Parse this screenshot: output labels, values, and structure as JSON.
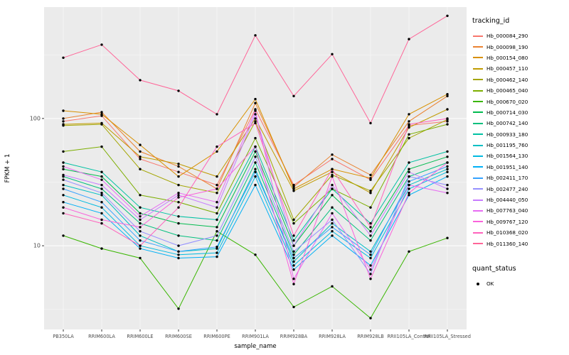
{
  "legend": {
    "tracking_title": "tracking_id",
    "quant_title": "quant_status",
    "quant_entries": [
      {
        "label": "OK"
      }
    ]
  },
  "chart_data": {
    "type": "line",
    "title": "",
    "xlabel": "sample_name",
    "ylabel": "FPKM + 1",
    "y_scale": "log10",
    "ylim": [
      2.2,
      750
    ],
    "y_ticks": [
      10,
      100
    ],
    "y_minor_ticks": [
      3.162,
      31.62,
      316.2
    ],
    "panel_bg": "#EBEBEB",
    "grid_color": "#FFFFFF",
    "point_color": "#000000",
    "tick_text_color": "#4D4D4D",
    "categories": [
      "PB350LA",
      "RRIM600LA",
      "RRIM600LE",
      "RRIM600SE",
      "RRIM600PE",
      "RRIM901LA",
      "RRIM928BA",
      "RRIM928LA",
      "RRIM928LB",
      "RRII105LA_Control",
      "RRII105LA_Stressed"
    ],
    "series": [
      {
        "name": "Hb_000084_290",
        "color": "#F8766D",
        "values": [
          95,
          105,
          48,
          38,
          30,
          118,
          30,
          48,
          33,
          88,
          95
        ]
      },
      {
        "name": "Hb_000098_190",
        "color": "#EA8331",
        "values": [
          100,
          112,
          55,
          42,
          28,
          132,
          29,
          52,
          36,
          95,
          150
        ]
      },
      {
        "name": "Hb_000154_080",
        "color": "#D89000",
        "values": [
          115,
          108,
          62,
          35,
          55,
          142,
          28,
          40,
          34,
          108,
          155
        ]
      },
      {
        "name": "Hb_000457_110",
        "color": "#C09B00",
        "values": [
          90,
          92,
          50,
          44,
          35,
          100,
          27,
          38,
          26,
          85,
          118
        ]
      },
      {
        "name": "Hb_000462_140",
        "color": "#A3A500",
        "values": [
          88,
          90,
          40,
          30,
          26,
          95,
          16,
          36,
          27,
          70,
          98
        ]
      },
      {
        "name": "Hb_000465_040",
        "color": "#7CAE00",
        "values": [
          55,
          60,
          25,
          22,
          18,
          70,
          15,
          28,
          20,
          75,
          90
        ]
      },
      {
        "name": "Hb_000670_020",
        "color": "#39B600",
        "values": [
          12,
          9.5,
          8,
          3.2,
          13,
          8.5,
          3.3,
          4.8,
          2.7,
          9,
          11.5
        ]
      },
      {
        "name": "Hb_000714_030",
        "color": "#00BB4E",
        "values": [
          40,
          35,
          18,
          15,
          14,
          55,
          10,
          25,
          13,
          40,
          50
        ]
      },
      {
        "name": "Hb_000742_140",
        "color": "#00BF7D",
        "values": [
          35,
          28,
          15,
          12,
          11,
          45,
          8.5,
          20,
          11,
          35,
          45
        ]
      },
      {
        "name": "Hb_000933_180",
        "color": "#00C1A3",
        "values": [
          45,
          38,
          20,
          17,
          16,
          60,
          11,
          28,
          15,
          45,
          55
        ]
      },
      {
        "name": "Hb_001195_760",
        "color": "#00BFC4",
        "values": [
          30,
          25,
          12,
          9,
          9.5,
          40,
          7.5,
          15,
          9,
          30,
          40
        ]
      },
      {
        "name": "Hb_001564_130",
        "color": "#00BAE0",
        "values": [
          25,
          20,
          10,
          8.5,
          8.8,
          35,
          7,
          13,
          8,
          28,
          38
        ]
      },
      {
        "name": "Hb_001951_140",
        "color": "#00B0F6",
        "values": [
          22,
          18,
          9.5,
          8,
          8.2,
          30,
          6.5,
          12,
          7,
          25,
          35
        ]
      },
      {
        "name": "Hb_002411_170",
        "color": "#35A2FF",
        "values": [
          28,
          22,
          11,
          9,
          9.8,
          38,
          8,
          14,
          8.5,
          32,
          42
        ]
      },
      {
        "name": "Hb_002477_240",
        "color": "#9590FF",
        "values": [
          33,
          26,
          13,
          10,
          12,
          50,
          9,
          16,
          6,
          35,
          30
        ]
      },
      {
        "name": "Hb_004440_050",
        "color": "#C77CFF",
        "values": [
          36,
          30,
          16,
          25,
          20,
          108,
          10,
          30,
          12,
          38,
          28
        ]
      },
      {
        "name": "Hb_007763_040",
        "color": "#E76BF3",
        "values": [
          42,
          33,
          17,
          26,
          22,
          115,
          5.5,
          18,
          6.5,
          30,
          26
        ]
      },
      {
        "name": "Hb_009767_120",
        "color": "#FA62DB",
        "values": [
          20,
          16,
          14,
          24,
          28,
          60,
          5,
          35,
          5.5,
          26,
          45
        ]
      },
      {
        "name": "Hb_010368_020",
        "color": "#FF62BC",
        "values": [
          18,
          15,
          10,
          20,
          60,
          92,
          12,
          40,
          14,
          90,
          100
        ]
      },
      {
        "name": "Hb_011360_140",
        "color": "#FF6598",
        "values": [
          300,
          380,
          200,
          165,
          108,
          450,
          150,
          320,
          92,
          420,
          640
        ]
      }
    ]
  }
}
